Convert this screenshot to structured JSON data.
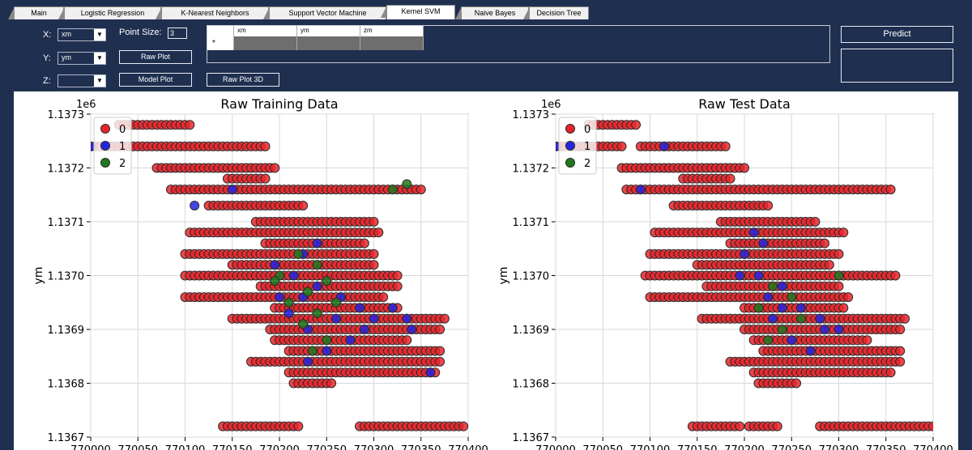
{
  "tabs": [
    {
      "label": "Main",
      "active": false
    },
    {
      "label": "Logistic Regression",
      "active": false
    },
    {
      "label": "K-Nearest Neighbors",
      "active": false
    },
    {
      "label": "Support Vector Machine",
      "active": false
    },
    {
      "label": "Kernel SVM",
      "active": true
    },
    {
      "label": "Naive Bayes",
      "active": false
    },
    {
      "label": "Decision Tree",
      "active": false
    }
  ],
  "controls": {
    "x_label": "X:",
    "x_value": "xm",
    "y_label": "Y:",
    "y_value": "ym",
    "z_label": "Z:",
    "z_value": "",
    "point_size_label": "Point Size:",
    "point_size_value": "3",
    "raw_plot_label": "Raw Plot",
    "model_plot_label": "Model Plot",
    "raw_plot_3d_label": "Raw Plot 3D",
    "predict_label": "Predict"
  },
  "input_grid": {
    "row_marker": "*",
    "columns": [
      "xm",
      "ym",
      "zm"
    ]
  },
  "chart_data": [
    {
      "type": "scatter",
      "title": "Raw Training Data",
      "ylabel": "ym",
      "y_offset_label": "1e6",
      "yticks": [
        "1.1373",
        "1.1372",
        "1.1371",
        "1.1370",
        "1.1369",
        "1.1368",
        "1.1367"
      ],
      "xticks": [
        "770000",
        "770050",
        "770100",
        "770150",
        "770200",
        "770250",
        "770300",
        "770350",
        "770400"
      ],
      "xlim": [
        770000,
        770400
      ],
      "ylim": [
        1136700,
        1137300
      ],
      "legend": {
        "placement": "top-left",
        "entries": [
          "0",
          "1",
          "2"
        ]
      },
      "colors": {
        "0": "#e8242a",
        "1": "#2424e0",
        "2": "#1e7a1e"
      },
      "grid": true,
      "bands": [
        {
          "y": 1137280,
          "x0": 770030,
          "x1": 770105,
          "cls": "0"
        },
        {
          "y": 1137240,
          "x0": 769990,
          "x1": 770185,
          "cls": "0"
        },
        {
          "y": 1137200,
          "x0": 770070,
          "x1": 770195,
          "cls": "0"
        },
        {
          "y": 1137180,
          "x0": 770145,
          "x1": 770185,
          "cls": "0"
        },
        {
          "y": 1137160,
          "x0": 770085,
          "x1": 770350,
          "cls": "0"
        },
        {
          "y": 1137130,
          "x0": 770125,
          "x1": 770225,
          "cls": "0"
        },
        {
          "y": 1137100,
          "x0": 770175,
          "x1": 770300,
          "cls": "0"
        },
        {
          "y": 1137080,
          "x0": 770105,
          "x1": 770305,
          "cls": "0"
        },
        {
          "y": 1137060,
          "x0": 770185,
          "x1": 770290,
          "cls": "0"
        },
        {
          "y": 1137040,
          "x0": 770100,
          "x1": 770300,
          "cls": "0"
        },
        {
          "y": 1137020,
          "x0": 770150,
          "x1": 770300,
          "cls": "0"
        },
        {
          "y": 1137000,
          "x0": 770100,
          "x1": 770325,
          "cls": "0"
        },
        {
          "y": 1136980,
          "x0": 770180,
          "x1": 770325,
          "cls": "0"
        },
        {
          "y": 1136960,
          "x0": 770100,
          "x1": 770310,
          "cls": "0"
        },
        {
          "y": 1136940,
          "x0": 770195,
          "x1": 770325,
          "cls": "0"
        },
        {
          "y": 1136920,
          "x0": 770150,
          "x1": 770375,
          "cls": "0"
        },
        {
          "y": 1136900,
          "x0": 770190,
          "x1": 770370,
          "cls": "0"
        },
        {
          "y": 1136880,
          "x0": 770195,
          "x1": 770335,
          "cls": "0"
        },
        {
          "y": 1136860,
          "x0": 770210,
          "x1": 770370,
          "cls": "0"
        },
        {
          "y": 1136840,
          "x0": 770170,
          "x1": 770370,
          "cls": "0"
        },
        {
          "y": 1136820,
          "x0": 770210,
          "x1": 770365,
          "cls": "0"
        },
        {
          "y": 1136800,
          "x0": 770215,
          "x1": 770255,
          "cls": "0"
        },
        {
          "y": 1136720,
          "x0": 770140,
          "x1": 770220,
          "cls": "0"
        },
        {
          "y": 1136720,
          "x0": 770285,
          "x1": 770395,
          "cls": "0"
        }
      ],
      "points_1": [
        [
          770000,
          1137240
        ],
        [
          770150,
          1137160
        ],
        [
          770110,
          1137130
        ],
        [
          770240,
          1137060
        ],
        [
          770225,
          1137040
        ],
        [
          770195,
          1137020
        ],
        [
          770215,
          1137000
        ],
        [
          770240,
          1136980
        ],
        [
          770265,
          1136960
        ],
        [
          770225,
          1136960
        ],
        [
          770285,
          1136940
        ],
        [
          770210,
          1136930
        ],
        [
          770260,
          1136920
        ],
        [
          770300,
          1136920
        ],
        [
          770340,
          1136900
        ],
        [
          770230,
          1136900
        ],
        [
          770275,
          1136880
        ],
        [
          770250,
          1136860
        ],
        [
          770230,
          1136840
        ],
        [
          770200,
          1136960
        ],
        [
          770320,
          1136940
        ],
        [
          770290,
          1136900
        ],
        [
          770360,
          1136820
        ],
        [
          770335,
          1136920
        ]
      ],
      "points_2": [
        [
          770320,
          1137160
        ],
        [
          770335,
          1137170
        ],
        [
          770220,
          1137040
        ],
        [
          770240,
          1137020
        ],
        [
          770200,
          1137000
        ],
        [
          770250,
          1136990
        ],
        [
          770230,
          1136970
        ],
        [
          770260,
          1136950
        ],
        [
          770210,
          1136950
        ],
        [
          770240,
          1136930
        ],
        [
          770225,
          1136910
        ],
        [
          770250,
          1136880
        ],
        [
          770235,
          1136860
        ],
        [
          770195,
          1136990
        ]
      ]
    },
    {
      "type": "scatter",
      "title": "Raw Test Data",
      "ylabel": "ym",
      "y_offset_label": "1e6",
      "yticks": [
        "1.1373",
        "1.1372",
        "1.1371",
        "1.1370",
        "1.1369",
        "1.1368",
        "1.1367"
      ],
      "xticks": [
        "770000",
        "770050",
        "770100",
        "770150",
        "770200",
        "770250",
        "770300",
        "770350",
        "770400"
      ],
      "xlim": [
        770000,
        770400
      ],
      "ylim": [
        1136700,
        1137300
      ],
      "legend": {
        "placement": "top-left",
        "entries": [
          "0",
          "1",
          "2"
        ]
      },
      "colors": {
        "0": "#e8242a",
        "1": "#2424e0",
        "2": "#1e7a1e"
      },
      "grid": true,
      "bands": [
        {
          "y": 1137280,
          "x0": 770035,
          "x1": 770085,
          "cls": "0"
        },
        {
          "y": 1137240,
          "x0": 769990,
          "x1": 770070,
          "cls": "0"
        },
        {
          "y": 1137240,
          "x0": 770090,
          "x1": 770180,
          "cls": "0"
        },
        {
          "y": 1137200,
          "x0": 770070,
          "x1": 770200,
          "cls": "0"
        },
        {
          "y": 1137180,
          "x0": 770135,
          "x1": 770185,
          "cls": "0"
        },
        {
          "y": 1137160,
          "x0": 770075,
          "x1": 770355,
          "cls": "0"
        },
        {
          "y": 1137130,
          "x0": 770125,
          "x1": 770225,
          "cls": "0"
        },
        {
          "y": 1137100,
          "x0": 770175,
          "x1": 770275,
          "cls": "0"
        },
        {
          "y": 1137080,
          "x0": 770105,
          "x1": 770305,
          "cls": "0"
        },
        {
          "y": 1137060,
          "x0": 770185,
          "x1": 770285,
          "cls": "0"
        },
        {
          "y": 1137040,
          "x0": 770100,
          "x1": 770300,
          "cls": "0"
        },
        {
          "y": 1137020,
          "x0": 770150,
          "x1": 770290,
          "cls": "0"
        },
        {
          "y": 1137000,
          "x0": 770095,
          "x1": 770360,
          "cls": "0"
        },
        {
          "y": 1136980,
          "x0": 770160,
          "x1": 770300,
          "cls": "0"
        },
        {
          "y": 1136960,
          "x0": 770100,
          "x1": 770310,
          "cls": "0"
        },
        {
          "y": 1136940,
          "x0": 770200,
          "x1": 770305,
          "cls": "0"
        },
        {
          "y": 1136920,
          "x0": 770155,
          "x1": 770370,
          "cls": "0"
        },
        {
          "y": 1136900,
          "x0": 770200,
          "x1": 770365,
          "cls": "0"
        },
        {
          "y": 1136880,
          "x0": 770210,
          "x1": 770330,
          "cls": "0"
        },
        {
          "y": 1136860,
          "x0": 770220,
          "x1": 770365,
          "cls": "0"
        },
        {
          "y": 1136840,
          "x0": 770185,
          "x1": 770365,
          "cls": "0"
        },
        {
          "y": 1136820,
          "x0": 770210,
          "x1": 770355,
          "cls": "0"
        },
        {
          "y": 1136800,
          "x0": 770215,
          "x1": 770255,
          "cls": "0"
        },
        {
          "y": 1136720,
          "x0": 770145,
          "x1": 770195,
          "cls": "0"
        },
        {
          "y": 1136720,
          "x0": 770205,
          "x1": 770235,
          "cls": "0"
        },
        {
          "y": 1136720,
          "x0": 770280,
          "x1": 770400,
          "cls": "0"
        }
      ],
      "points_1": [
        [
          770000,
          1137240
        ],
        [
          770115,
          1137240
        ],
        [
          770090,
          1137160
        ],
        [
          770210,
          1137080
        ],
        [
          770220,
          1137060
        ],
        [
          770200,
          1137040
        ],
        [
          770215,
          1137000
        ],
        [
          770240,
          1136980
        ],
        [
          770225,
          1136960
        ],
        [
          770260,
          1136940
        ],
        [
          770280,
          1136920
        ],
        [
          770230,
          1136920
        ],
        [
          770300,
          1136900
        ],
        [
          770250,
          1136880
        ],
        [
          770270,
          1136860
        ],
        [
          770195,
          1137000
        ],
        [
          770240,
          1136940
        ],
        [
          770285,
          1136900
        ]
      ],
      "points_2": [
        [
          770230,
          1136980
        ],
        [
          770250,
          1136960
        ],
        [
          770215,
          1136940
        ],
        [
          770240,
          1136900
        ],
        [
          770225,
          1136880
        ],
        [
          770260,
          1136920
        ],
        [
          770300,
          1137000
        ]
      ]
    }
  ]
}
